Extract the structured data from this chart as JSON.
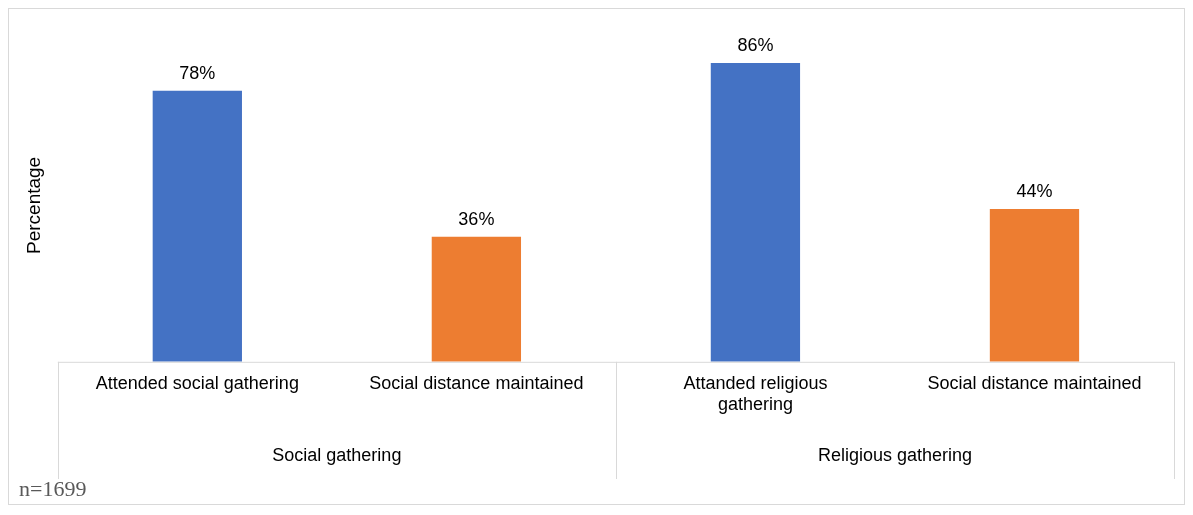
{
  "chart_data": {
    "type": "bar",
    "ylabel": "Percentage",
    "categories": [
      "Attended social gathering",
      "Social distance maintained",
      "Attanded religious gathering",
      "Social distance maintained"
    ],
    "values": [
      78,
      36,
      86,
      44
    ],
    "colors": [
      "#4472c4",
      "#ed7d31",
      "#4472c4",
      "#ed7d31"
    ],
    "value_labels": [
      "78%",
      "36%",
      "86%",
      "44%"
    ],
    "annotations": [
      "Social gathering",
      "Religious gathering",
      "n=1699"
    ],
    "grid": false,
    "legend": false
  }
}
